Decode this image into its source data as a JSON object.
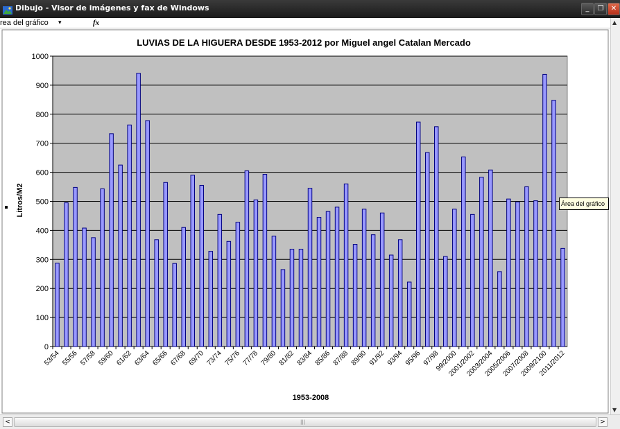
{
  "window": {
    "title": "Dibujo - Visor de imágenes y fax de Windows",
    "minimize_label": "_",
    "maximize_label": "❐",
    "close_label": "✕"
  },
  "formula_bar": {
    "name_box": "rea del gráfico",
    "dropdown_icon": "▾",
    "fx_label": "fx"
  },
  "tooltip": {
    "text": "Área del gráfico"
  },
  "colors": {
    "plot_area": "#c0c0c0",
    "bar_fill": "#9999ff",
    "bar_stroke": "#000080",
    "grid": "#000000"
  },
  "chart_data": {
    "type": "bar",
    "title": "LUVIAS DE LA HIGUERA DESDE 1953-2012 por Miguel angel Catalan Mercado",
    "xlabel": "1953-2008",
    "ylabel": "Litros/M2",
    "ylim": [
      0,
      1000
    ],
    "yticks": [
      0,
      100,
      200,
      300,
      400,
      500,
      600,
      700,
      800,
      900,
      1000
    ],
    "grid": true,
    "legend": "none",
    "tick_labels": [
      "53/54",
      "55/56",
      "57/58",
      "59/60",
      "61/62",
      "63/64",
      "65/66",
      "67/68",
      "69/70",
      "73/74",
      "75/76",
      "77/78",
      "79/80",
      "81/82",
      "83/84",
      "85/86",
      "87/88",
      "89/90",
      "91/92",
      "93/94",
      "95/96",
      "97/98",
      "99/2000",
      "2001/2002",
      "2003/2004",
      "2005/2006",
      "2007/2008",
      "2009/2100",
      "2011/2012"
    ],
    "values": [
      287,
      495,
      548,
      408,
      375,
      543,
      733,
      625,
      763,
      941,
      778,
      368,
      565,
      286,
      410,
      590,
      555,
      328,
      455,
      362,
      428,
      605,
      505,
      593,
      380,
      265,
      335,
      335,
      545,
      445,
      465,
      480,
      560,
      352,
      473,
      385,
      460,
      315,
      368,
      222,
      773,
      668,
      757,
      310,
      473,
      653,
      455,
      583,
      608,
      258,
      508,
      498,
      550,
      502,
      937,
      848,
      338
    ]
  }
}
